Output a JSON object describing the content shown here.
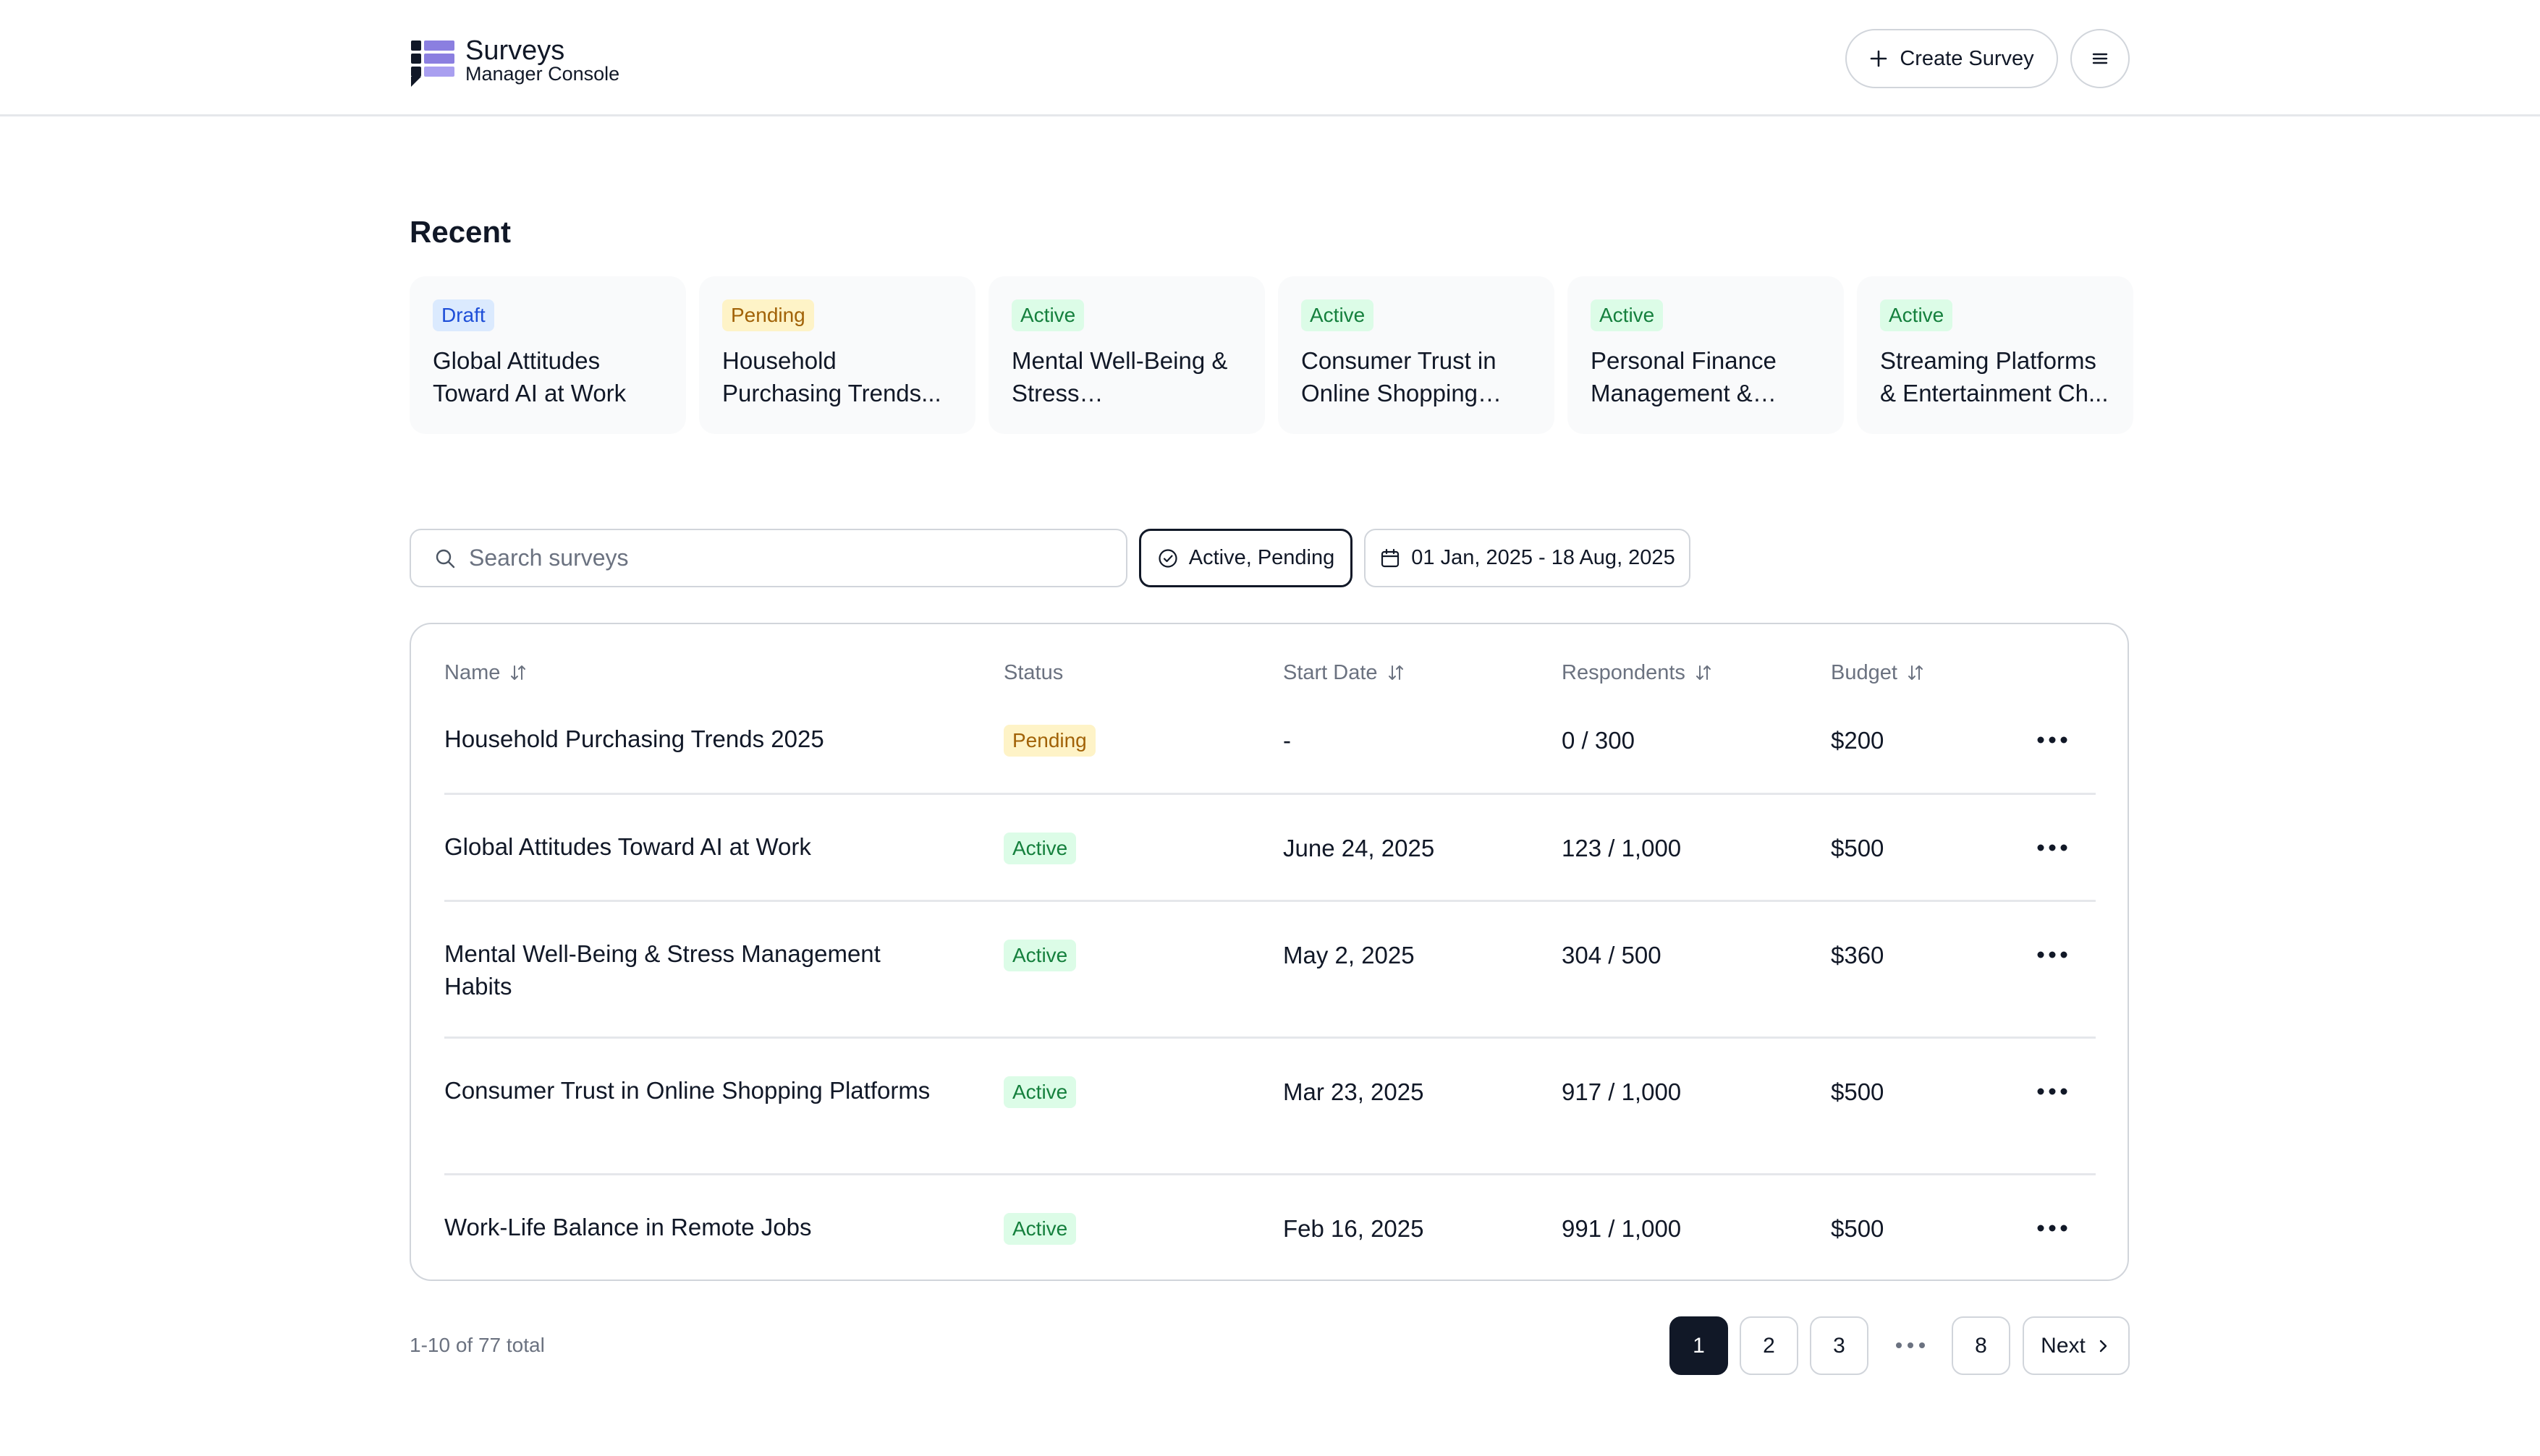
{
  "app": {
    "title": "Surveys",
    "subtitle": "Manager Console"
  },
  "header": {
    "create_label": "Create Survey",
    "create_icon": "plus-icon",
    "menu_icon": "hamburger-icon"
  },
  "recent": {
    "title": "Recent",
    "cards": [
      {
        "status": "Draft",
        "status_kind": "draft",
        "title": "Global Attitudes Toward AI at Work"
      },
      {
        "status": "Pending",
        "status_kind": "pending",
        "title": "Household Purchasing Trends..."
      },
      {
        "status": "Active",
        "status_kind": "active",
        "title": "Mental Well-Being & Stress Management..."
      },
      {
        "status": "Active",
        "status_kind": "active",
        "title": "Consumer Trust in Online Shopping Pla..."
      },
      {
        "status": "Active",
        "status_kind": "active",
        "title": "Personal Finance Management & Savi..."
      },
      {
        "status": "Active",
        "status_kind": "active",
        "title": "Streaming Platforms & Entertainment Ch..."
      }
    ]
  },
  "filters": {
    "search_placeholder": "Search surveys",
    "search_value": "",
    "status_filter": "Active, Pending",
    "date_range": "01 Jan, 2025 - 18 Aug, 2025"
  },
  "table": {
    "columns": {
      "name": "Name",
      "status": "Status",
      "start_date": "Start Date",
      "respondents": "Respondents",
      "budget": "Budget"
    },
    "rows": [
      {
        "name": "Household Purchasing Trends 2025",
        "status": "Pending",
        "status_kind": "pending",
        "start_date": "-",
        "respondents": "0 / 300",
        "budget": "$200"
      },
      {
        "name": "Global Attitudes Toward AI at Work",
        "status": "Active",
        "status_kind": "active",
        "start_date": "June 24, 2025",
        "respondents": "123 / 1,000",
        "budget": "$500"
      },
      {
        "name": "Mental Well-Being & Stress Management Habits",
        "status": "Active",
        "status_kind": "active",
        "start_date": "May 2, 2025",
        "respondents": "304 / 500",
        "budget": "$360"
      },
      {
        "name": "Consumer Trust in Online Shopping Platforms",
        "status": "Active",
        "status_kind": "active",
        "start_date": "Mar 23, 2025",
        "respondents": "917 / 1,000",
        "budget": "$500"
      },
      {
        "name": "Work-Life Balance in Remote Jobs",
        "status": "Active",
        "status_kind": "active",
        "start_date": "Feb 16, 2025",
        "respondents": "991 / 1,000",
        "budget": "$500"
      }
    ]
  },
  "pagination": {
    "summary": "1-10 of 77 total",
    "pages": [
      "1",
      "2",
      "3",
      "8"
    ],
    "current": "1",
    "next_label": "Next"
  },
  "colors": {
    "brand_dark": "#111827",
    "brand_purple": "#8b7fe0",
    "draft": "#1d4ed8",
    "pending": "#a16207",
    "active": "#15803d"
  }
}
